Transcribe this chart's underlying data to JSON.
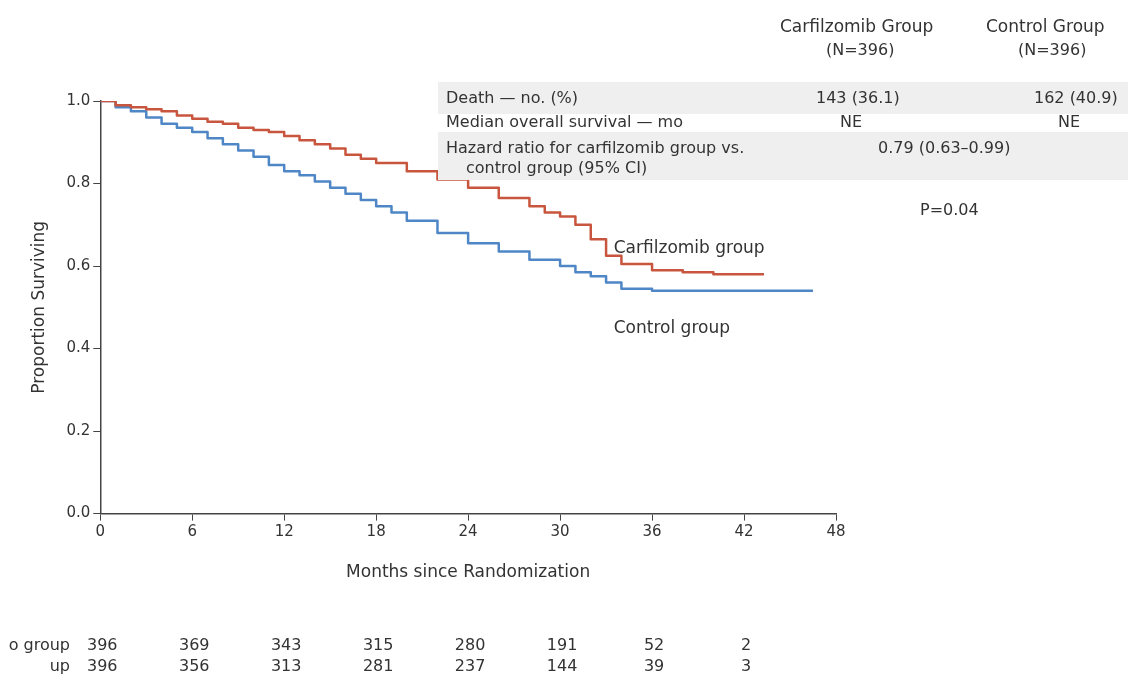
{
  "chart_data": {
    "type": "step",
    "xlabel": "Months since Randomization",
    "ylabel": "Proportion Surviving",
    "xlim": [
      0,
      48
    ],
    "xticks": [
      0,
      6,
      12,
      18,
      24,
      30,
      36,
      42,
      48
    ],
    "ylim": [
      0,
      1
    ],
    "yticks": [
      {
        "value": 0,
        "label": "0.0"
      },
      {
        "value": 0.2,
        "label": "0.2"
      },
      {
        "value": 0.4,
        "label": "0.4"
      },
      {
        "value": 0.6,
        "label": "0.6"
      },
      {
        "value": 0.8,
        "label": "0.8"
      },
      {
        "value": 1,
        "label": "1.0"
      }
    ],
    "grid": false,
    "legend": false,
    "marker": "none",
    "line_style": "solid",
    "series": [
      {
        "name": "Carfilzomib group",
        "color": "#c8553d",
        "x": [
          0,
          1,
          2,
          3,
          4,
          5,
          6,
          7,
          8,
          9,
          10,
          11,
          12,
          13,
          14,
          15,
          16,
          17,
          18,
          20,
          22,
          24,
          26,
          28,
          29,
          30,
          31,
          32,
          33,
          34,
          36,
          38,
          40,
          43.3
        ],
        "values": [
          1,
          0.99,
          0.985,
          0.98,
          0.975,
          0.965,
          0.957,
          0.95,
          0.945,
          0.935,
          0.93,
          0.925,
          0.915,
          0.905,
          0.895,
          0.885,
          0.87,
          0.86,
          0.85,
          0.83,
          0.81,
          0.79,
          0.765,
          0.745,
          0.73,
          0.72,
          0.7,
          0.665,
          0.625,
          0.605,
          0.59,
          0.585,
          0.58,
          0.58
        ]
      },
      {
        "name": "Control group",
        "color": "#4f86c6",
        "x": [
          0,
          1,
          2,
          3,
          4,
          5,
          6,
          7,
          8,
          9,
          10,
          11,
          12,
          13,
          14,
          15,
          16,
          17,
          18,
          19,
          20,
          22,
          24,
          26,
          28,
          30,
          31,
          32,
          33,
          34,
          36,
          40,
          46.5
        ],
        "values": [
          1,
          0.985,
          0.975,
          0.96,
          0.945,
          0.935,
          0.925,
          0.91,
          0.895,
          0.88,
          0.865,
          0.845,
          0.83,
          0.82,
          0.805,
          0.79,
          0.775,
          0.76,
          0.745,
          0.73,
          0.71,
          0.68,
          0.655,
          0.635,
          0.615,
          0.6,
          0.585,
          0.575,
          0.56,
          0.545,
          0.54,
          0.54,
          0.54
        ]
      }
    ],
    "annotations": [
      "Carfilzomib Group",
      "(N=396)",
      "Control Group",
      "(N=396)",
      "Death — no. (%)",
      "143 (36.1)",
      "162 (40.9)",
      "Median overall survival — mo",
      "NE",
      "NE",
      "Hazard ratio for carfilzomib group vs.",
      "control group (95% CI)",
      "0.79 (0.63–0.99)",
      "P=0.04",
      "o group",
      "396",
      "369",
      "343",
      "315",
      "280",
      "191",
      "52",
      "2",
      "up",
      "396",
      "356",
      "313",
      "281",
      "237",
      "144",
      "39",
      "3"
    ]
  }
}
